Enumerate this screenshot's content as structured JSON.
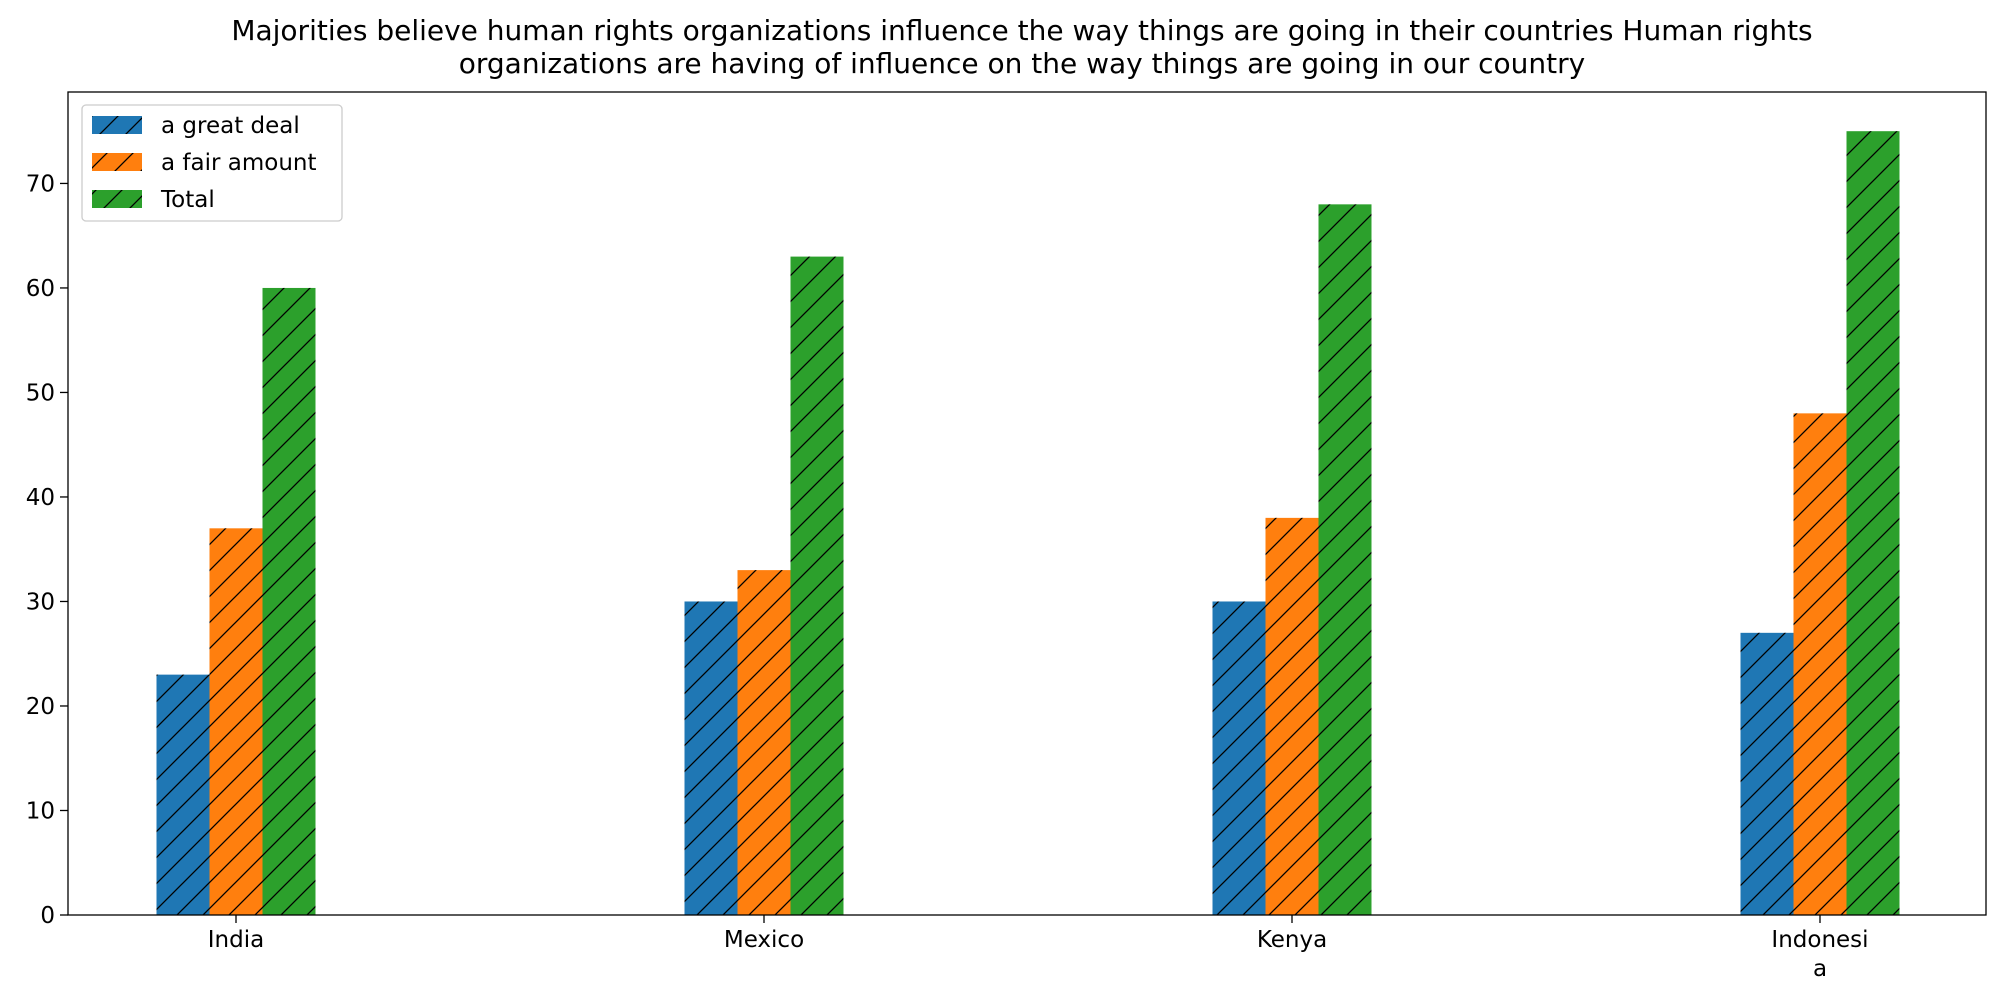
{
  "chart_data": {
    "type": "bar",
    "title_lines": [
      "Majorities believe human rights organizations influence the way things are going in their countries Human rights",
      "organizations are having of influence on the way things are going in our country"
    ],
    "categories": [
      "India",
      "Mexico",
      "Kenya",
      "Indonesia"
    ],
    "category_label_lines": [
      [
        "India"
      ],
      [
        "Mexico"
      ],
      [
        "Kenya"
      ],
      [
        "Indonesi",
        "a"
      ]
    ],
    "series": [
      {
        "name": "a great deal",
        "values": [
          23,
          30,
          30,
          27
        ],
        "color": "#1f77b4"
      },
      {
        "name": "a fair amount",
        "values": [
          37,
          33,
          38,
          48
        ],
        "color": "#ff7f0e"
      },
      {
        "name": "Total",
        "values": [
          60,
          63,
          68,
          75
        ],
        "color": "#2ca02c"
      }
    ],
    "ylim": [
      0,
      78.75
    ],
    "yticks": [
      0,
      10,
      20,
      30,
      40,
      50,
      60,
      70
    ],
    "grid": false,
    "hatch": "diagonal",
    "legend_position": "top-left"
  }
}
